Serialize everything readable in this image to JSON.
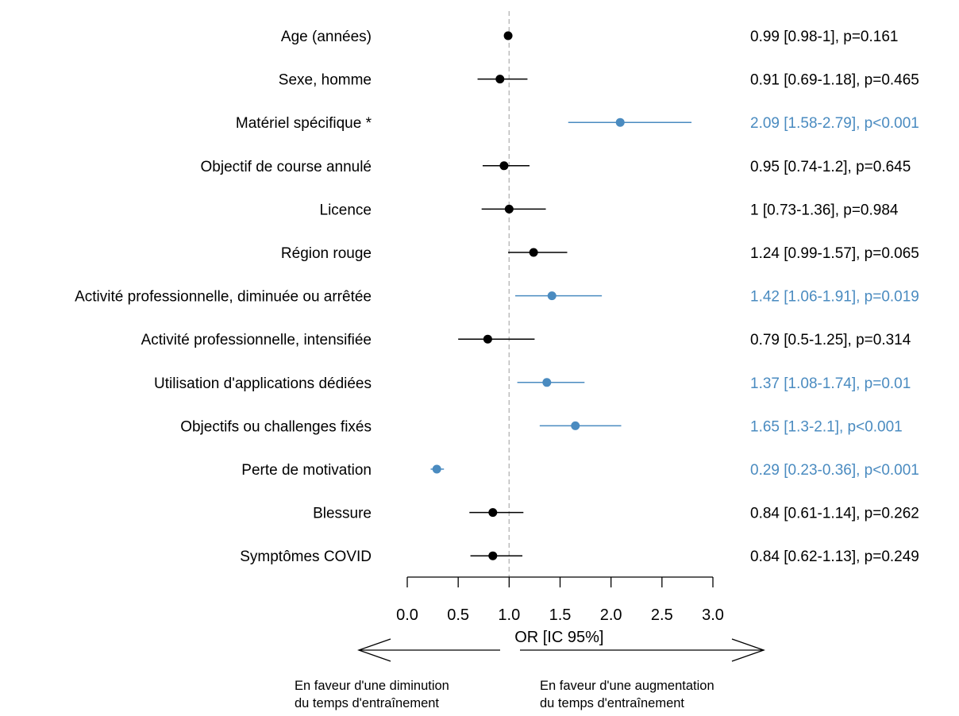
{
  "chart_data": {
    "type": "forest",
    "xlabel": "OR [IC 95%]",
    "xlim": [
      0,
      3
    ],
    "x_ticks": [
      "0.0",
      "0.5",
      "1.0",
      "1.5",
      "2.0",
      "2.5",
      "3.0"
    ],
    "x_tick_values": [
      0,
      0.5,
      1,
      1.5,
      2,
      2.5,
      3
    ],
    "reference_line": 1,
    "colors": {
      "default": "#000000",
      "significant": "#4a8bc0",
      "reference": "#bbbbbb"
    },
    "rows": [
      {
        "label": "Age (années)",
        "or": 0.99,
        "low": 0.98,
        "high": 1.0,
        "text": "0.99 [0.98-1], p=0.161",
        "significant": false
      },
      {
        "label": "Sexe, homme",
        "or": 0.91,
        "low": 0.69,
        "high": 1.18,
        "text": "0.91 [0.69-1.18], p=0.465",
        "significant": false
      },
      {
        "label": "Matériel spécifique *",
        "or": 2.09,
        "low": 1.58,
        "high": 2.79,
        "text": "2.09 [1.58-2.79], p<0.001",
        "significant": true
      },
      {
        "label": "Objectif de course annulé",
        "or": 0.95,
        "low": 0.74,
        "high": 1.2,
        "text": "0.95 [0.74-1.2], p=0.645",
        "significant": false
      },
      {
        "label": "Licence",
        "or": 1.0,
        "low": 0.73,
        "high": 1.36,
        "text": "1 [0.73-1.36], p=0.984",
        "significant": false
      },
      {
        "label": "Région rouge",
        "or": 1.24,
        "low": 0.99,
        "high": 1.57,
        "text": "1.24 [0.99-1.57], p=0.065",
        "significant": false
      },
      {
        "label": "Activité professionnelle, diminuée ou arrêtée",
        "or": 1.42,
        "low": 1.06,
        "high": 1.91,
        "text": "1.42 [1.06-1.91], p=0.019",
        "significant": true
      },
      {
        "label": "Activité professionnelle, intensifiée",
        "or": 0.79,
        "low": 0.5,
        "high": 1.25,
        "text": "0.79 [0.5-1.25], p=0.314",
        "significant": false
      },
      {
        "label": "Utilisation d'applications dédiées",
        "or": 1.37,
        "low": 1.08,
        "high": 1.74,
        "text": "1.37 [1.08-1.74], p=0.01",
        "significant": true
      },
      {
        "label": "Objectifs ou challenges fixés",
        "or": 1.65,
        "low": 1.3,
        "high": 2.1,
        "text": "1.65 [1.3-2.1], p<0.001",
        "significant": true
      },
      {
        "label": "Perte de motivation",
        "or": 0.29,
        "low": 0.23,
        "high": 0.36,
        "text": "0.29 [0.23-0.36], p<0.001",
        "significant": true
      },
      {
        "label": "Blessure",
        "or": 0.84,
        "low": 0.61,
        "high": 1.14,
        "text": "0.84 [0.61-1.14], p=0.262",
        "significant": false
      },
      {
        "label": "Symptômes COVID",
        "or": 0.84,
        "low": 0.62,
        "high": 1.13,
        "text": "0.84 [0.62-1.13], p=0.249",
        "significant": false
      }
    ],
    "annotations": {
      "left_line1": "En faveur d'une diminution",
      "left_line2": "du temps d'entraînement",
      "right_line1": "En faveur d'une augmentation",
      "right_line2": "du temps d'entraînement"
    }
  }
}
